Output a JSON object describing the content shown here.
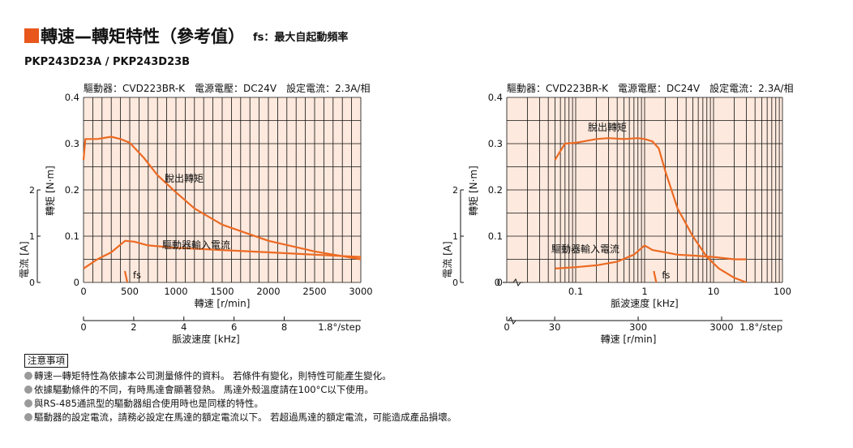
{
  "header": {
    "title": "轉速—轉矩特性（參考值）",
    "subtitle": "fs：最大自起動頻率",
    "model": "PKP243D23A / PKP243D23B"
  },
  "chart_data": [
    {
      "type": "line",
      "driver_info": "驅動器：CVD223BR-K　電源電壓：DC24V　設定電流：2.3A/相",
      "x": [
        0,
        200,
        500,
        1000,
        1500,
        2000,
        2500,
        3000
      ],
      "xlim": [
        0,
        3000
      ],
      "xscale": "linear",
      "xlabel": "轉速 [r/min]",
      "x_ticks": [
        "0",
        "500",
        "1000",
        "1500",
        "2000",
        "2500",
        "3000"
      ],
      "ylabel": "轉矩 [N·m]",
      "ylim": [
        0,
        0.4
      ],
      "y_ticks": [
        "0",
        "0.1",
        "0.2",
        "0.3",
        "0.4"
      ],
      "ylabel2": "電流 [A]",
      "y2lim": [
        0,
        4
      ],
      "y2_ticks": [
        "0",
        "1",
        "2"
      ],
      "x2label": "脈波速度 [kHz]",
      "x2_ticks": [
        "0",
        "2",
        "4",
        "6",
        "8",
        "1.8°/step"
      ],
      "grid": true,
      "series": [
        {
          "name": "脫出轉矩",
          "axis": "torque",
          "x": [
            0,
            20,
            60,
            150,
            300,
            400,
            500,
            650,
            800,
            1000,
            1200,
            1500,
            2000,
            2500,
            3000
          ],
          "values": [
            0.265,
            0.31,
            0.31,
            0.31,
            0.315,
            0.31,
            0.302,
            0.27,
            0.232,
            0.195,
            0.16,
            0.125,
            0.09,
            0.067,
            0.05
          ]
        },
        {
          "name": "驅動器輸入電流",
          "axis": "current",
          "x": [
            0,
            150,
            300,
            450,
            550,
            700,
            1000,
            1500,
            2000,
            2500,
            3000
          ],
          "values": [
            0.3,
            0.5,
            0.65,
            0.9,
            0.88,
            0.8,
            0.75,
            0.7,
            0.65,
            0.6,
            0.55
          ]
        }
      ],
      "annotations": [
        {
          "text": "fs",
          "x": 500
        }
      ]
    },
    {
      "type": "line",
      "driver_info": "驅動器：CVD223BR-K　電源電壓：DC24V　設定電流：2.3A/相",
      "xscale": "log",
      "xlim": [
        0.01,
        100
      ],
      "xlabel": "脈波速度 [kHz]",
      "x_ticks": [
        "0.1",
        "1",
        "10",
        "100"
      ],
      "ylabel": "轉矩 [N·m]",
      "ylim": [
        0,
        0.4
      ],
      "y_ticks": [
        "0",
        "0.1",
        "0.2",
        "0.3",
        "0.4"
      ],
      "ylabel2": "電流 [A]",
      "y2lim": [
        0,
        4
      ],
      "y2_ticks": [
        "0",
        "1",
        "2"
      ],
      "x2label": "轉速 [r/min]",
      "x2_ticks": [
        "0",
        "30",
        "300",
        "3000",
        "1.8°/step"
      ],
      "grid": true,
      "series": [
        {
          "name": "脫出轉矩",
          "axis": "torque",
          "x": [
            0.05,
            0.07,
            0.1,
            0.2,
            0.3,
            0.5,
            0.8,
            1.0,
            1.3,
            1.6,
            2.0,
            3.0,
            5.0,
            8.0,
            12,
            20,
            30
          ],
          "values": [
            0.265,
            0.3,
            0.302,
            0.31,
            0.312,
            0.31,
            0.312,
            0.31,
            0.305,
            0.29,
            0.24,
            0.16,
            0.1,
            0.055,
            0.03,
            0.01,
            0.0
          ]
        },
        {
          "name": "驅動器輸入電流",
          "axis": "current",
          "x": [
            0.05,
            0.1,
            0.2,
            0.4,
            0.7,
            1.0,
            1.3,
            2.0,
            3.0,
            5.0,
            10,
            20,
            30
          ],
          "values": [
            0.3,
            0.33,
            0.37,
            0.45,
            0.6,
            0.8,
            0.7,
            0.65,
            0.6,
            0.58,
            0.55,
            0.5,
            0.5
          ]
        }
      ],
      "annotations": [
        {
          "text": "fs",
          "x": 1.6
        }
      ]
    }
  ],
  "notes": {
    "title": "注意事項",
    "items": [
      "轉速—轉矩特性為依據本公司測量條件的資料。 若條件有變化，則特性可能產生變化。",
      "依據驅動條件的不同，有時馬達會顯著發熱。 馬達外殼溫度請在100°C以下使用。",
      "與RS-485通訊型的驅動器組合使用時也是同樣的特性。",
      "驅動器的設定電流，請務必設定在馬達的額定電流以下。 若超過馬達的額定電流，可能造成產品損壞。"
    ]
  },
  "colors": {
    "accent": "#e8571c",
    "plot_bg": "#fde9dd",
    "curve": "#ec6a23",
    "grid": "#111111"
  }
}
